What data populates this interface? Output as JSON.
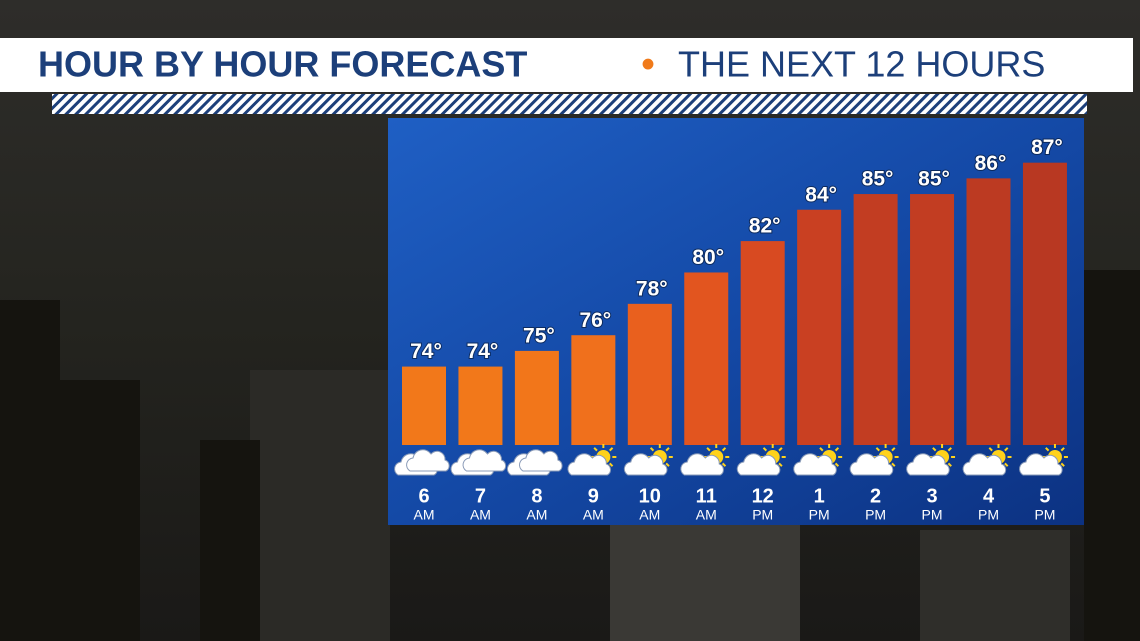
{
  "chart_data": {
    "type": "bar",
    "title": "HOUR BY HOUR FORECAST",
    "separator": "•",
    "subtitle": "THE NEXT 12 HOURS",
    "categories": [
      "6",
      "7",
      "8",
      "9",
      "10",
      "11",
      "12",
      "1",
      "2",
      "3",
      "4",
      "5"
    ],
    "periods": [
      "AM",
      "AM",
      "AM",
      "AM",
      "AM",
      "AM",
      "PM",
      "PM",
      "PM",
      "PM",
      "PM",
      "PM"
    ],
    "values": [
      74,
      74,
      75,
      76,
      78,
      80,
      82,
      84,
      85,
      85,
      86,
      87
    ],
    "value_labels": [
      "74°",
      "74°",
      "75°",
      "76°",
      "78°",
      "80°",
      "82°",
      "84°",
      "85°",
      "85°",
      "86°",
      "87°"
    ],
    "colors": [
      "#f2781a",
      "#f2781a",
      "#f2761a",
      "#f0701c",
      "#e9601e",
      "#e2551f",
      "#d84a21",
      "#c94022",
      "#c23d22",
      "#c23d22",
      "#bc3a22",
      "#b83822"
    ],
    "ylim": [
      69,
      88
    ]
  }
}
